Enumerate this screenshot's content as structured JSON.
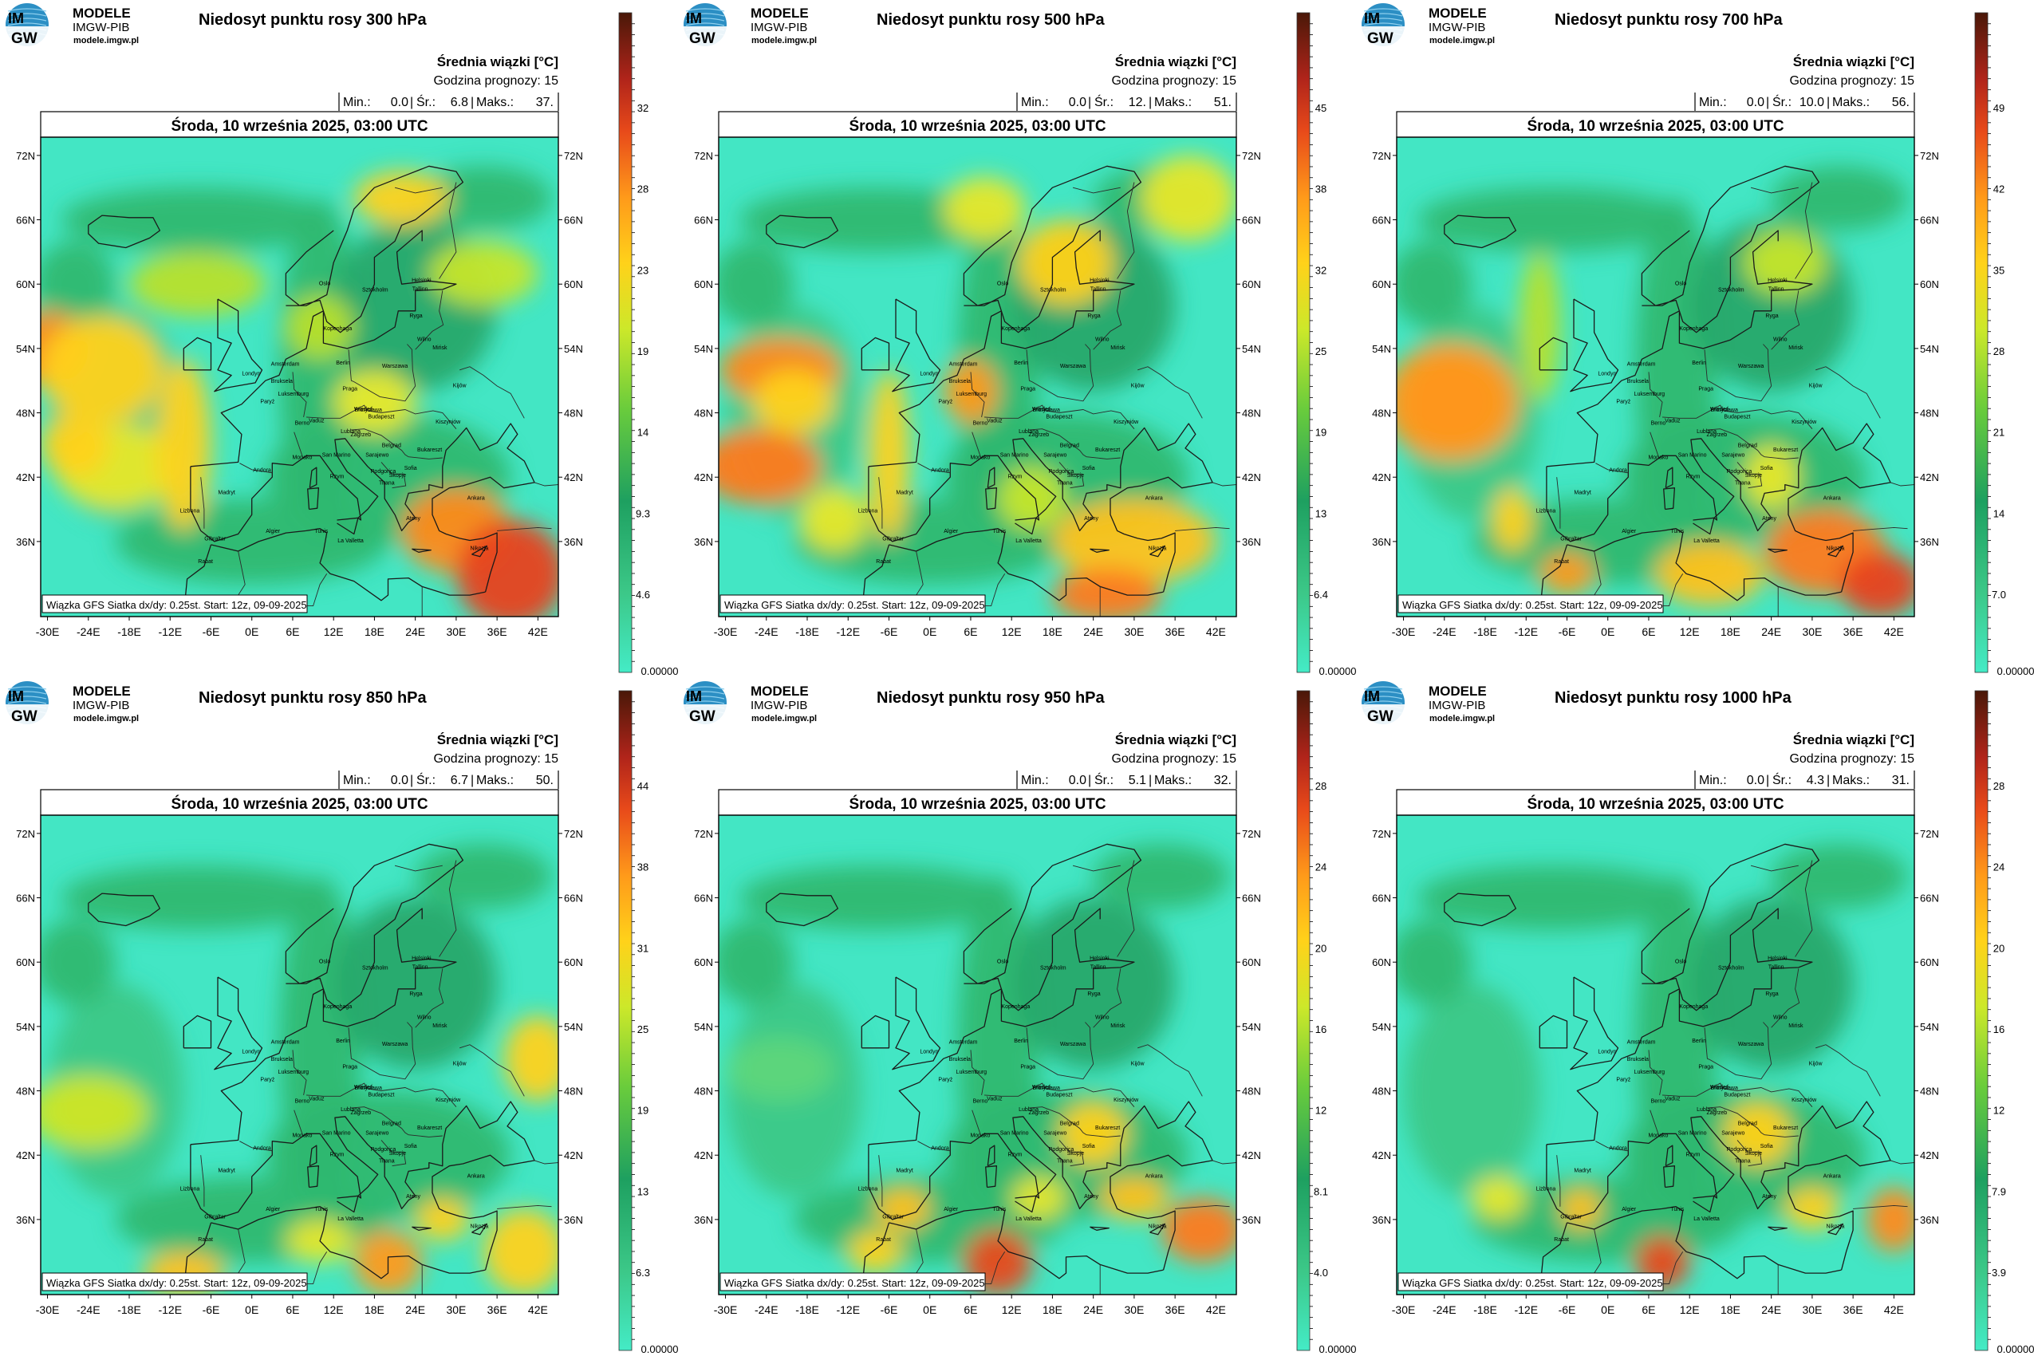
{
  "branding": {
    "logo_mark_top": "IM",
    "logo_mark_bottom": "GW",
    "name": "MODELE",
    "org": "IMGW-PIB",
    "url": "modele.imgw.pl"
  },
  "common": {
    "mean_label": "Średnia wiązki [°C]",
    "forecast_hour_label": "Godzina prognozy: 15",
    "date_label": "Środa, 10 września 2025, 03:00 UTC",
    "footer_label": "Wiązka GFS Siatka dx/dy: 0.25st. Start: 12z, 09-09-2025",
    "lon_ticks": [
      "-30E",
      "-24E",
      "-18E",
      "-12E",
      "-6E",
      "0E",
      "6E",
      "12E",
      "18E",
      "24E",
      "30E",
      "36E",
      "42E"
    ],
    "lat_ticks": [
      "72N",
      "66N",
      "60N",
      "54N",
      "48N",
      "42N",
      "36N"
    ],
    "colorbar_min": "0.00000",
    "cities": [
      {
        "name": "Oslo",
        "lon": 10.7,
        "lat": 59.9
      },
      {
        "name": "Sztokholm",
        "lon": 18.1,
        "lat": 59.3
      },
      {
        "name": "Helsinki",
        "lon": 24.9,
        "lat": 60.2
      },
      {
        "name": "Tallinn",
        "lon": 24.7,
        "lat": 59.4
      },
      {
        "name": "Ryga",
        "lon": 24.1,
        "lat": 56.9
      },
      {
        "name": "Kopenhaga",
        "lon": 12.6,
        "lat": 55.7
      },
      {
        "name": "Wilno",
        "lon": 25.3,
        "lat": 54.7
      },
      {
        "name": "Mińsk",
        "lon": 27.6,
        "lat": 53.9
      },
      {
        "name": "Amsterdam",
        "lon": 4.9,
        "lat": 52.4
      },
      {
        "name": "Berlin",
        "lon": 13.4,
        "lat": 52.5
      },
      {
        "name": "Warszawa",
        "lon": 21.0,
        "lat": 52.2
      },
      {
        "name": "Londyn",
        "lon": -0.1,
        "lat": 51.5
      },
      {
        "name": "Bruksela",
        "lon": 4.4,
        "lat": 50.8
      },
      {
        "name": "Luksemburg",
        "lon": 6.1,
        "lat": 49.6
      },
      {
        "name": "Paryż",
        "lon": 2.3,
        "lat": 48.9
      },
      {
        "name": "Praga",
        "lon": 14.4,
        "lat": 50.1
      },
      {
        "name": "Kijów",
        "lon": 30.5,
        "lat": 50.4
      },
      {
        "name": "Wiedeń",
        "lon": 16.4,
        "lat": 48.2
      },
      {
        "name": "Bratysława",
        "lon": 17.1,
        "lat": 48.1
      },
      {
        "name": "Budapeszt",
        "lon": 19.0,
        "lat": 47.5
      },
      {
        "name": "Kiszyniów",
        "lon": 28.8,
        "lat": 47.0
      },
      {
        "name": "Vaduz",
        "lon": 9.5,
        "lat": 47.1
      },
      {
        "name": "Berno",
        "lon": 7.4,
        "lat": 46.9
      },
      {
        "name": "Lublana",
        "lon": 14.5,
        "lat": 46.1
      },
      {
        "name": "Zagrzeb",
        "lon": 16.0,
        "lat": 45.8
      },
      {
        "name": "Belgrad",
        "lon": 20.5,
        "lat": 44.8
      },
      {
        "name": "Bukareszt",
        "lon": 26.1,
        "lat": 44.4
      },
      {
        "name": "Andora",
        "lon": 1.5,
        "lat": 42.5
      },
      {
        "name": "Monako",
        "lon": 7.4,
        "lat": 43.7
      },
      {
        "name": "San Marino",
        "lon": 12.4,
        "lat": 43.9
      },
      {
        "name": "Sarajewo",
        "lon": 18.4,
        "lat": 43.9
      },
      {
        "name": "Podgorica",
        "lon": 19.3,
        "lat": 42.4
      },
      {
        "name": "Sofia",
        "lon": 23.3,
        "lat": 42.7
      },
      {
        "name": "Skopje",
        "lon": 21.4,
        "lat": 42.0
      },
      {
        "name": "Tirana",
        "lon": 19.8,
        "lat": 41.3
      },
      {
        "name": "Rzym",
        "lon": 12.5,
        "lat": 41.9
      },
      {
        "name": "Madryt",
        "lon": -3.7,
        "lat": 40.4
      },
      {
        "name": "Lizbona",
        "lon": -9.1,
        "lat": 38.7
      },
      {
        "name": "Ateny",
        "lon": 23.7,
        "lat": 38.0
      },
      {
        "name": "Ankara",
        "lon": 32.9,
        "lat": 39.9
      },
      {
        "name": "Tunis",
        "lon": 10.2,
        "lat": 36.8
      },
      {
        "name": "Algier",
        "lon": 3.1,
        "lat": 36.8
      },
      {
        "name": "Gibraltar",
        "lon": -5.4,
        "lat": 36.1
      },
      {
        "name": "La Valletta",
        "lon": 14.5,
        "lat": 35.9
      },
      {
        "name": "Rabat",
        "lon": -6.8,
        "lat": 34.0
      },
      {
        "name": "Nikozja",
        "lon": 33.4,
        "lat": 35.2
      }
    ]
  },
  "panels": [
    {
      "title": "Niedosyt punktu rosy 300 hPa",
      "min": "0.0",
      "mean": "6.8",
      "max": "37.",
      "cbar_ticks": [
        "32",
        "28",
        "23",
        "19",
        "14",
        "9.3",
        "4.6"
      ],
      "blobs": []
    },
    {
      "title": "Niedosyt punktu rosy 500 hPa",
      "min": "0.0",
      "mean": "12.",
      "max": "51.",
      "cbar_ticks": [
        "45",
        "38",
        "32",
        "25",
        "19",
        "13",
        "6.4"
      ],
      "blobs": []
    },
    {
      "title": "Niedosyt punktu rosy 700 hPa",
      "min": "0.0",
      "mean": "10.0",
      "max": "56.",
      "cbar_ticks": [
        "49",
        "42",
        "35",
        "28",
        "21",
        "14",
        "7.0"
      ],
      "blobs": []
    },
    {
      "title": "Niedosyt punktu rosy 850 hPa",
      "min": "0.0",
      "mean": "6.7",
      "max": "50.",
      "cbar_ticks": [
        "44",
        "38",
        "31",
        "25",
        "19",
        "13",
        "6.3"
      ],
      "blobs": []
    },
    {
      "title": "Niedosyt punktu rosy 950 hPa",
      "min": "0.0",
      "mean": "5.1",
      "max": "32.",
      "cbar_ticks": [
        "28",
        "24",
        "20",
        "16",
        "12",
        "8.1",
        "4.0"
      ],
      "blobs": []
    },
    {
      "title": "Niedosyt punktu rosy 1000 hPa",
      "min": "0.0",
      "mean": "4.3",
      "max": "31.",
      "cbar_ticks": [
        "28",
        "24",
        "20",
        "16",
        "12",
        "7.9",
        "3.9"
      ],
      "blobs": []
    }
  ]
}
